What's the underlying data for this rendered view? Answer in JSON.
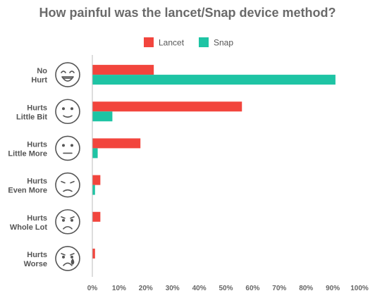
{
  "colors": {
    "lancet": "#F2453D",
    "snap": "#1EC4A4",
    "text": "#555555",
    "title": "#6A6A6A",
    "axis": "#BBBBBB",
    "face": "#555555"
  },
  "chart_data": {
    "type": "bar",
    "orientation": "horizontal",
    "title": "How painful was the lancet/Snap device method?",
    "categories": [
      [
        "No",
        "Hurt"
      ],
      [
        "Hurts",
        "Little Bit"
      ],
      [
        "Hurts",
        "Little More"
      ],
      [
        "Hurts",
        "Even More"
      ],
      [
        "Hurts",
        "Whole Lot"
      ],
      [
        "Hurts",
        "Worse"
      ]
    ],
    "category_icons": [
      "face-no-hurt-icon",
      "face-hurts-little-bit-icon",
      "face-hurts-little-more-icon",
      "face-hurts-even-more-icon",
      "face-hurts-whole-lot-icon",
      "face-hurts-worse-icon"
    ],
    "series": [
      {
        "name": "Lancet",
        "color": "#F2453D",
        "values": [
          23,
          56,
          18,
          3,
          3,
          1
        ]
      },
      {
        "name": "Snap",
        "color": "#1EC4A4",
        "values": [
          91,
          7.5,
          2,
          1,
          0,
          0
        ]
      }
    ],
    "xlim": [
      0,
      100
    ],
    "xticks": [
      "0%",
      "10%",
      "20%",
      "30%",
      "40%",
      "50%",
      "60%",
      "70%",
      "80%",
      "90%",
      "100%"
    ],
    "legend_position": "top-center",
    "grid": false
  }
}
